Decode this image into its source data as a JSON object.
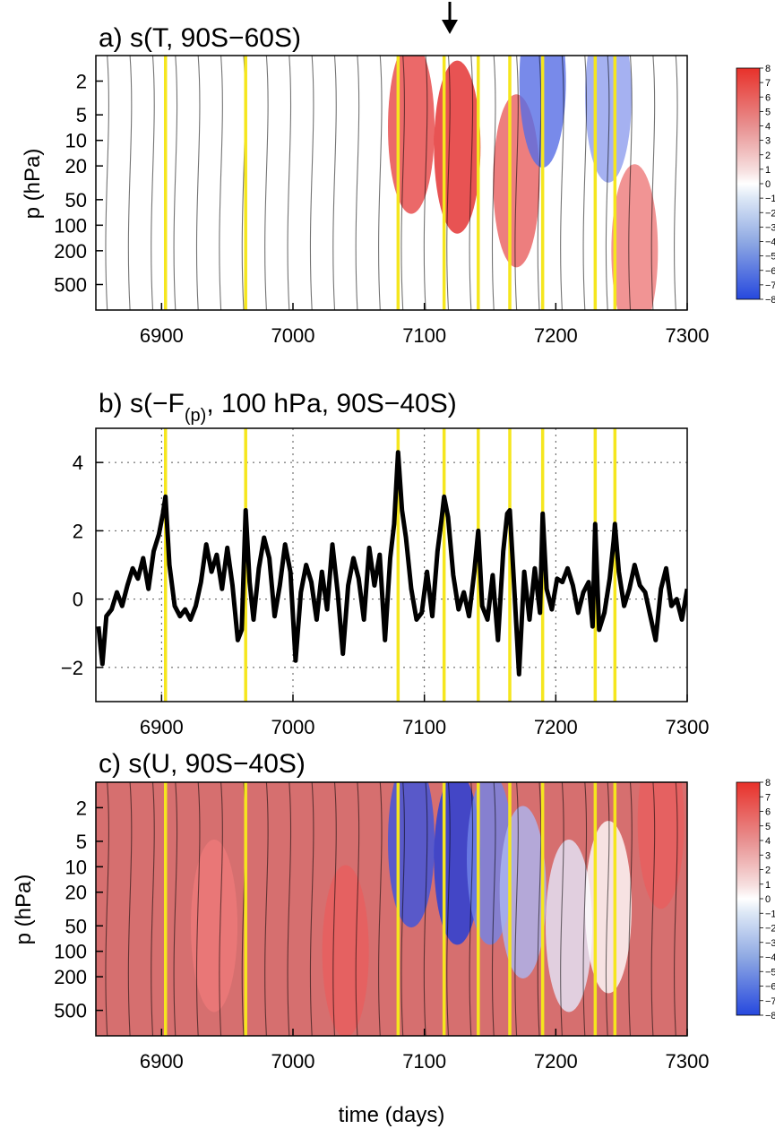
{
  "chart_data": [
    {
      "type": "heatmap",
      "title_main": "a) s(T, 90S−60S)",
      "ylabel": "p (hPa)",
      "xlabel": "",
      "xlim": [
        6850,
        7300
      ],
      "x_ticks": [
        6900,
        7000,
        7100,
        7200,
        7300
      ],
      "y_scale": "log",
      "ylim": [
        1000,
        1
      ],
      "y_ticks": [
        2,
        5,
        10,
        20,
        50,
        100,
        200,
        500
      ],
      "colorbar_ticks": [
        8,
        7,
        6,
        5,
        4,
        3,
        2,
        1,
        0,
        -1,
        -2,
        -3,
        -4,
        -5,
        -6,
        -7,
        -8
      ],
      "colorscale": "blue-white-red",
      "marker": "down-arrow at day 7120",
      "event_lines": [
        6903,
        6964,
        7080,
        7115,
        7141,
        7165,
        7190,
        7230,
        7245
      ],
      "event_line_color": "#f5e61e",
      "features": [
        {
          "x": 7090,
          "y": 7,
          "value": 7
        },
        {
          "x": 7125,
          "y": 12,
          "value": 8
        },
        {
          "x": 7170,
          "y": 30,
          "value": 6
        },
        {
          "x": 7190,
          "y": 2,
          "value": -6
        },
        {
          "x": 7240,
          "y": 3,
          "value": -4
        },
        {
          "x": 7260,
          "y": 200,
          "value": 5
        }
      ]
    },
    {
      "type": "line",
      "title_main": "b) s(−F",
      "title_sub": "(p)",
      "title_rest": ", 100 hPa, 90S−40S)",
      "xlabel": "",
      "ylabel": "",
      "xlim": [
        6850,
        7300
      ],
      "ylim": [
        -3,
        5
      ],
      "x_ticks": [
        6900,
        7000,
        7100,
        7200,
        7300
      ],
      "y_ticks": [
        -2,
        0,
        2,
        4
      ],
      "grid": true,
      "line_color": "#000000",
      "event_lines": [
        6903,
        6964,
        7080,
        7115,
        7141,
        7165,
        7190,
        7230,
        7245
      ],
      "event_line_color": "#f5e61e",
      "series": [
        {
          "x": [
            6852,
            6855,
            6858,
            6862,
            6866,
            6870,
            6874,
            6878,
            6882,
            6886,
            6890,
            6894,
            6898,
            6901,
            6903,
            6906,
            6910,
            6914,
            6918,
            6922,
            6926,
            6930,
            6934,
            6938,
            6942,
            6946,
            6950,
            6954,
            6958,
            6961,
            6964,
            6967,
            6970,
            6974,
            6978,
            6982,
            6986,
            6990,
            6994,
            6998,
            7002,
            7006,
            7010,
            7014,
            7018,
            7022,
            7026,
            7030,
            7034,
            7038,
            7042,
            7046,
            7050,
            7054,
            7058,
            7062,
            7066,
            7070,
            7074,
            7077,
            7080,
            7083,
            7086,
            7090,
            7094,
            7098,
            7102,
            7106,
            7110,
            7113,
            7115,
            7118,
            7122,
            7126,
            7130,
            7134,
            7138,
            7141,
            7144,
            7148,
            7152,
            7156,
            7160,
            7163,
            7165,
            7168,
            7172,
            7176,
            7180,
            7184,
            7188,
            7190,
            7193,
            7197,
            7201,
            7205,
            7209,
            7213,
            7217,
            7221,
            7225,
            7228,
            7230,
            7233,
            7237,
            7241,
            7244,
            7245,
            7248,
            7252,
            7256,
            7260,
            7264,
            7268,
            7272,
            7276,
            7280,
            7284,
            7288,
            7292,
            7296,
            7300
          ],
          "y": [
            -0.8,
            -1.9,
            -0.5,
            -0.3,
            0.2,
            -0.2,
            0.4,
            0.9,
            0.6,
            1.2,
            0.3,
            1.4,
            1.9,
            2.5,
            3.0,
            1.0,
            -0.2,
            -0.5,
            -0.3,
            -0.6,
            -0.2,
            0.5,
            1.6,
            0.8,
            1.3,
            0.3,
            1.5,
            0.4,
            -1.2,
            -0.9,
            2.6,
            0.5,
            -0.6,
            0.9,
            1.8,
            1.2,
            -0.5,
            0.4,
            1.6,
            0.8,
            -1.8,
            0.2,
            1.0,
            0.5,
            -0.6,
            0.8,
            -0.3,
            1.6,
            0.2,
            -1.6,
            0.4,
            1.2,
            0.6,
            -0.6,
            1.5,
            0.4,
            1.3,
            -1.2,
            1.2,
            2.2,
            4.3,
            2.6,
            1.8,
            0.3,
            -0.6,
            -0.4,
            0.8,
            -0.5,
            1.4,
            2.3,
            3.0,
            2.4,
            0.7,
            -0.3,
            0.2,
            -0.5,
            0.8,
            2.0,
            -0.2,
            -0.6,
            0.7,
            -1.2,
            1.4,
            2.5,
            2.6,
            0.6,
            -2.2,
            0.8,
            -0.6,
            0.9,
            -0.4,
            2.5,
            0.3,
            -0.3,
            0.6,
            0.5,
            0.9,
            0.4,
            -0.4,
            0.2,
            0.5,
            -0.8,
            2.2,
            -0.9,
            -0.4,
            0.6,
            1.7,
            2.2,
            0.8,
            -0.2,
            0.3,
            1.0,
            0.4,
            0.2,
            -0.5,
            -1.2,
            0.3,
            0.9,
            -0.2,
            0.0,
            -0.6,
            0.3
          ]
        }
      ]
    },
    {
      "type": "heatmap",
      "title_main": "c) s(U, 90S−40S)",
      "ylabel": "p (hPa)",
      "xlabel": "time (days)",
      "xlim": [
        6850,
        7300
      ],
      "x_ticks": [
        6900,
        7000,
        7100,
        7200,
        7300
      ],
      "y_scale": "log",
      "ylim": [
        1000,
        1
      ],
      "y_ticks": [
        2,
        5,
        10,
        20,
        50,
        100,
        200,
        500
      ],
      "colorbar_ticks": [
        8,
        7,
        6,
        5,
        4,
        3,
        2,
        1,
        0,
        -1,
        -2,
        -3,
        -4,
        -5,
        -6,
        -7,
        -8
      ],
      "colorscale": "blue-white-red",
      "event_lines": [
        6903,
        6964,
        7080,
        7115,
        7141,
        7165,
        7190,
        7230,
        7245
      ],
      "event_line_color": "#f5e61e",
      "features": [
        {
          "x": 7090,
          "y": 5,
          "value": -7
        },
        {
          "x": 7125,
          "y": 8,
          "value": -8
        },
        {
          "x": 7150,
          "y": 8,
          "value": -5
        },
        {
          "x": 7175,
          "y": 20,
          "value": -3
        },
        {
          "x": 7210,
          "y": 50,
          "value": -1
        },
        {
          "x": 7240,
          "y": 30,
          "value": 0
        },
        {
          "x": 7040,
          "y": 100,
          "value": 6
        },
        {
          "x": 6940,
          "y": 50,
          "value": 5
        },
        {
          "x": 7280,
          "y": 3,
          "value": 6
        }
      ]
    }
  ]
}
